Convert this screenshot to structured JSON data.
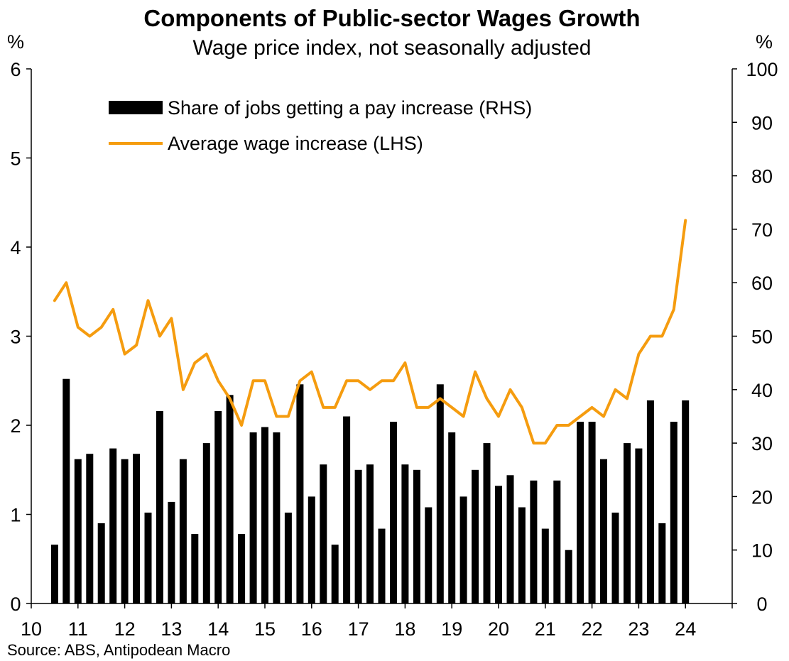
{
  "chart_data": {
    "type": "bar+line",
    "title": "Components of Public-sector Wages Growth",
    "subtitle": "Wage price index, not seasonally adjusted",
    "left_axis": {
      "unit": "%",
      "ylim": [
        0,
        6
      ],
      "ticks": [
        "0",
        "1",
        "2",
        "3",
        "4",
        "5",
        "6"
      ]
    },
    "right_axis": {
      "unit": "%",
      "ylim": [
        0,
        100
      ],
      "ticks": [
        "0",
        "10",
        "20",
        "30",
        "40",
        "50",
        "60",
        "70",
        "80",
        "90",
        "100"
      ]
    },
    "x_axis": {
      "range": [
        10,
        25
      ],
      "tick_labels": [
        "10",
        "11",
        "12",
        "13",
        "14",
        "15",
        "16",
        "17",
        "18",
        "19",
        "20",
        "21",
        "22",
        "23",
        "24"
      ]
    },
    "source": "Source: ABS, Antipodean Macro",
    "legend": [
      {
        "key": "share",
        "label": "Share of jobs getting a pay increase (RHS)",
        "kind": "bar",
        "color": "#000000"
      },
      {
        "key": "avg",
        "label": "Average wage increase (LHS)",
        "kind": "line",
        "color": "#F59C0F"
      }
    ],
    "x_quarters": [
      10.5,
      10.75,
      11.0,
      11.25,
      11.5,
      11.75,
      12.0,
      12.25,
      12.5,
      12.75,
      13.0,
      13.25,
      13.5,
      13.75,
      14.0,
      14.25,
      14.5,
      14.75,
      15.0,
      15.25,
      15.5,
      15.75,
      16.0,
      16.25,
      16.5,
      16.75,
      17.0,
      17.25,
      17.5,
      17.75,
      18.0,
      18.25,
      18.5,
      18.75,
      19.0,
      19.25,
      19.5,
      19.75,
      20.0,
      20.25,
      20.5,
      20.75,
      21.0,
      21.25,
      21.5,
      21.75,
      22.0,
      22.25,
      22.5,
      22.75,
      23.0,
      23.25,
      23.5,
      23.75,
      24.0
    ],
    "series": [
      {
        "name": "Share of jobs getting a pay increase (RHS)",
        "axis": "right",
        "type": "bar",
        "values": [
          11,
          42,
          27,
          28,
          15,
          29,
          27,
          28,
          17,
          36,
          19,
          27,
          13,
          30,
          36,
          39,
          13,
          32,
          33,
          32,
          17,
          41,
          20,
          26,
          11,
          35,
          25,
          26,
          14,
          34,
          26,
          25,
          18,
          41,
          32,
          20,
          25,
          30,
          22,
          24,
          18,
          23,
          14,
          23,
          10,
          34,
          34,
          27,
          17,
          30,
          29,
          38,
          15,
          34,
          38
        ]
      },
      {
        "name": "Average wage increase (LHS)",
        "axis": "left",
        "type": "line",
        "values": [
          3.4,
          3.6,
          3.1,
          3.0,
          3.1,
          3.3,
          2.8,
          2.9,
          3.4,
          3.0,
          3.2,
          2.4,
          2.7,
          2.8,
          2.5,
          2.3,
          2.0,
          2.5,
          2.5,
          2.1,
          2.1,
          2.5,
          2.6,
          2.2,
          2.2,
          2.5,
          2.5,
          2.4,
          2.5,
          2.5,
          2.7,
          2.2,
          2.2,
          2.3,
          2.2,
          2.1,
          2.6,
          2.3,
          2.1,
          2.4,
          2.2,
          1.8,
          1.8,
          2.0,
          2.0,
          2.1,
          2.2,
          2.1,
          2.4,
          2.3,
          2.8,
          3.0,
          3.0,
          3.3,
          4.3
        ]
      }
    ]
  }
}
